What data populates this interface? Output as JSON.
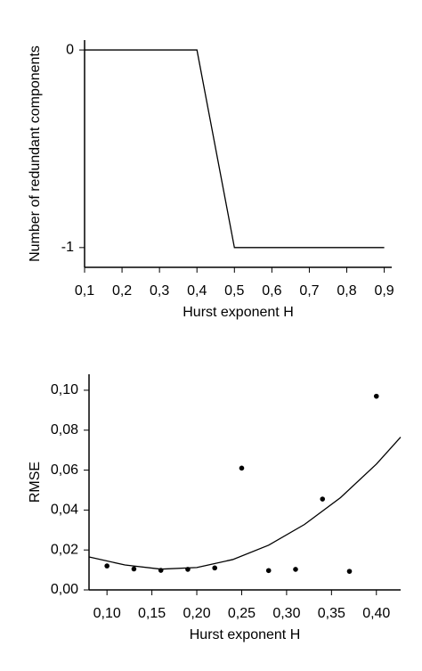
{
  "chart_data": [
    {
      "type": "line",
      "xlabel": "Hurst exponent H",
      "ylabel": "Number of redundant components",
      "xlim": [
        0.1,
        0.92
      ],
      "ylim": [
        -1.1,
        0.05
      ],
      "xticks": [
        {
          "value": 0.1,
          "label": "0,1"
        },
        {
          "value": 0.2,
          "label": "0,2"
        },
        {
          "value": 0.3,
          "label": "0,3"
        },
        {
          "value": 0.4,
          "label": "0,4"
        },
        {
          "value": 0.5,
          "label": "0,5"
        },
        {
          "value": 0.6,
          "label": "0,6"
        },
        {
          "value": 0.7,
          "label": "0,7"
        },
        {
          "value": 0.8,
          "label": "0,8"
        },
        {
          "value": 0.9,
          "label": "0,9"
        }
      ],
      "yticks": [
        0,
        -1
      ],
      "series": [
        {
          "mode": "line",
          "color": "#000000",
          "x": [
            0.1,
            0.4,
            0.5,
            0.9
          ],
          "values": [
            0,
            0,
            -1,
            -1
          ]
        }
      ]
    },
    {
      "type": "scatter",
      "xlabel": "Hurst exponent H",
      "ylabel": "RMSE",
      "xlim": [
        0.08,
        0.427
      ],
      "ylim": [
        0,
        0.108
      ],
      "xticks": [
        {
          "value": 0.1,
          "label": "0,10"
        },
        {
          "value": 0.15,
          "label": "0,15"
        },
        {
          "value": 0.2,
          "label": "0,20"
        },
        {
          "value": 0.25,
          "label": "0,25"
        },
        {
          "value": 0.3,
          "label": "0,30"
        },
        {
          "value": 0.35,
          "label": "0,35"
        },
        {
          "value": 0.4,
          "label": "0,40"
        }
      ],
      "yticks": [
        {
          "value": 0,
          "label": "0,00"
        },
        {
          "value": 0.02,
          "label": "0,02"
        },
        {
          "value": 0.04,
          "label": "0,04"
        },
        {
          "value": 0.06,
          "label": "0,06"
        },
        {
          "value": 0.08,
          "label": "0,08"
        },
        {
          "value": 0.1,
          "label": "0,10"
        }
      ],
      "series": [
        {
          "mode": "markers",
          "color": "#000000",
          "x": [
            0.1,
            0.13,
            0.16,
            0.19,
            0.22,
            0.25,
            0.28,
            0.31,
            0.34,
            0.37,
            0.4
          ],
          "values": [
            0.012,
            0.0105,
            0.0098,
            0.0103,
            0.011,
            0.061,
            0.0097,
            0.0103,
            0.0455,
            0.0093,
            0.097
          ]
        },
        {
          "mode": "line",
          "color": "#000000",
          "x": [
            0.08,
            0.12,
            0.16,
            0.2,
            0.24,
            0.28,
            0.32,
            0.36,
            0.4,
            0.427
          ],
          "values": [
            0.0165,
            0.0125,
            0.0104,
            0.0112,
            0.0152,
            0.0224,
            0.0328,
            0.0462,
            0.063,
            0.0765
          ]
        }
      ]
    }
  ]
}
